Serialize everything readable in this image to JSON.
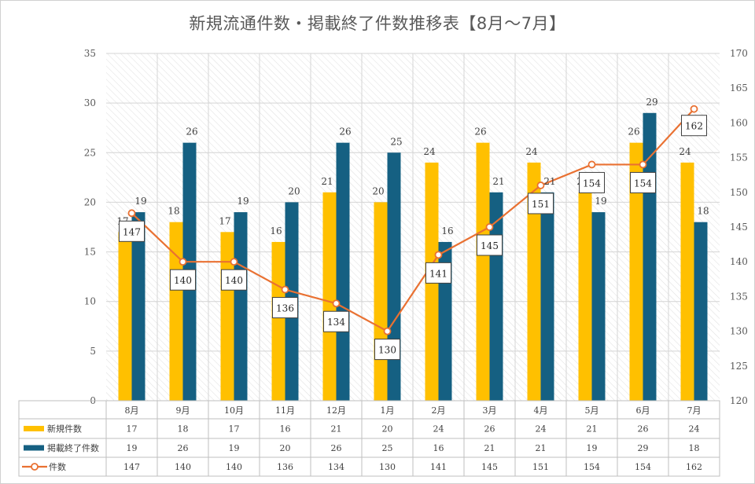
{
  "chart_data": {
    "type": "bar",
    "title": "新規流通件数・掲載終了件数推移表【8月～7月】",
    "categories": [
      "8月",
      "9月",
      "10月",
      "11月",
      "12月",
      "1月",
      "2月",
      "3月",
      "4月",
      "5月",
      "6月",
      "7月"
    ],
    "series": [
      {
        "name": "新規件数",
        "type": "bar",
        "axis": "left",
        "color": "#FFC000",
        "values": [
          17,
          18,
          17,
          16,
          21,
          20,
          24,
          26,
          24,
          21,
          26,
          24
        ]
      },
      {
        "name": "掲載終了件数",
        "type": "bar",
        "axis": "left",
        "color": "#156082",
        "values": [
          19,
          26,
          19,
          20,
          26,
          25,
          16,
          21,
          21,
          19,
          29,
          18
        ]
      },
      {
        "name": "件数",
        "type": "line",
        "axis": "right",
        "color": "#E97132",
        "values": [
          147,
          140,
          140,
          136,
          134,
          130,
          141,
          145,
          151,
          154,
          154,
          162
        ]
      }
    ],
    "y_left": {
      "min": 0,
      "max": 35,
      "ticks": [
        "0",
        "5",
        "10",
        "15",
        "20",
        "25",
        "30",
        "35"
      ]
    },
    "y_right": {
      "min": 120,
      "max": 170,
      "ticks": [
        "120",
        "125",
        "130",
        "135",
        "140",
        "145",
        "150",
        "155",
        "160",
        "165",
        "170"
      ]
    },
    "grid": true,
    "legend": "data-table-bottom"
  }
}
